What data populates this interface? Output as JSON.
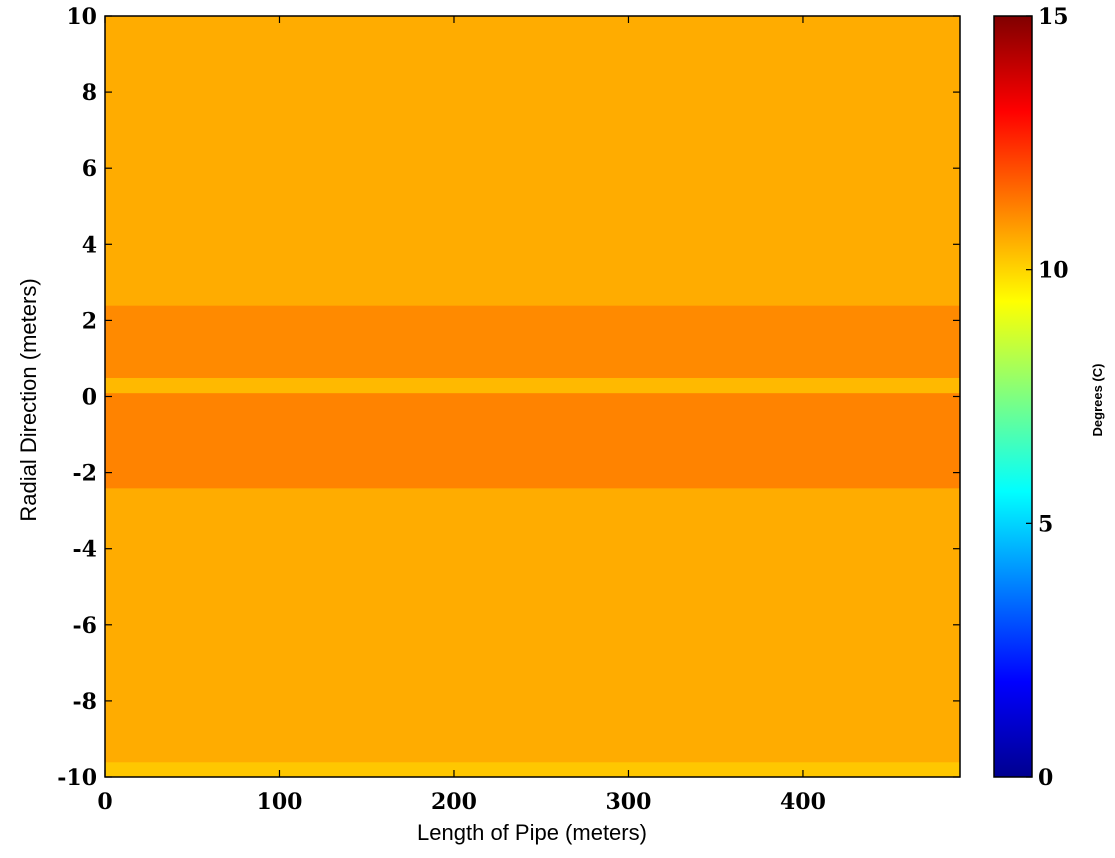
{
  "chart_data": {
    "type": "heatmap",
    "title": "",
    "xlabel": "Length of Pipe (meters)",
    "ylabel": "Radial Direction (meters)",
    "xlim": [
      0,
      490
    ],
    "ylim": [
      -10,
      10
    ],
    "x_ticks": [
      "0",
      "100",
      "200",
      "300",
      "400"
    ],
    "x_tick_values": [
      0,
      100,
      200,
      300,
      400
    ],
    "y_ticks": [
      "10",
      "8",
      "6",
      "4",
      "2",
      "0",
      "-2",
      "-4",
      "-6",
      "-8",
      "-10"
    ],
    "y_tick_values": [
      10,
      8,
      6,
      4,
      2,
      0,
      -2,
      -4,
      -6,
      -8,
      -10
    ],
    "colorbar": {
      "label": "Degrees (C)",
      "range": [
        0,
        15
      ],
      "ticks": [
        "15",
        "10",
        "5",
        "0"
      ],
      "tick_values": [
        15,
        10,
        5,
        0
      ],
      "colormap": "jet"
    },
    "bands": [
      {
        "y_min": -10,
        "y_max": -9.6,
        "value": 10.2
      },
      {
        "y_min": -9.6,
        "y_max": -2.4,
        "value": 10.6
      },
      {
        "y_min": -2.4,
        "y_max": 0.1,
        "value": 11.2
      },
      {
        "y_min": 0.1,
        "y_max": 0.5,
        "value": 10.4
      },
      {
        "y_min": 0.5,
        "y_max": 2.4,
        "value": 11.1
      },
      {
        "y_min": 2.4,
        "y_max": 10,
        "value": 10.6
      }
    ]
  }
}
